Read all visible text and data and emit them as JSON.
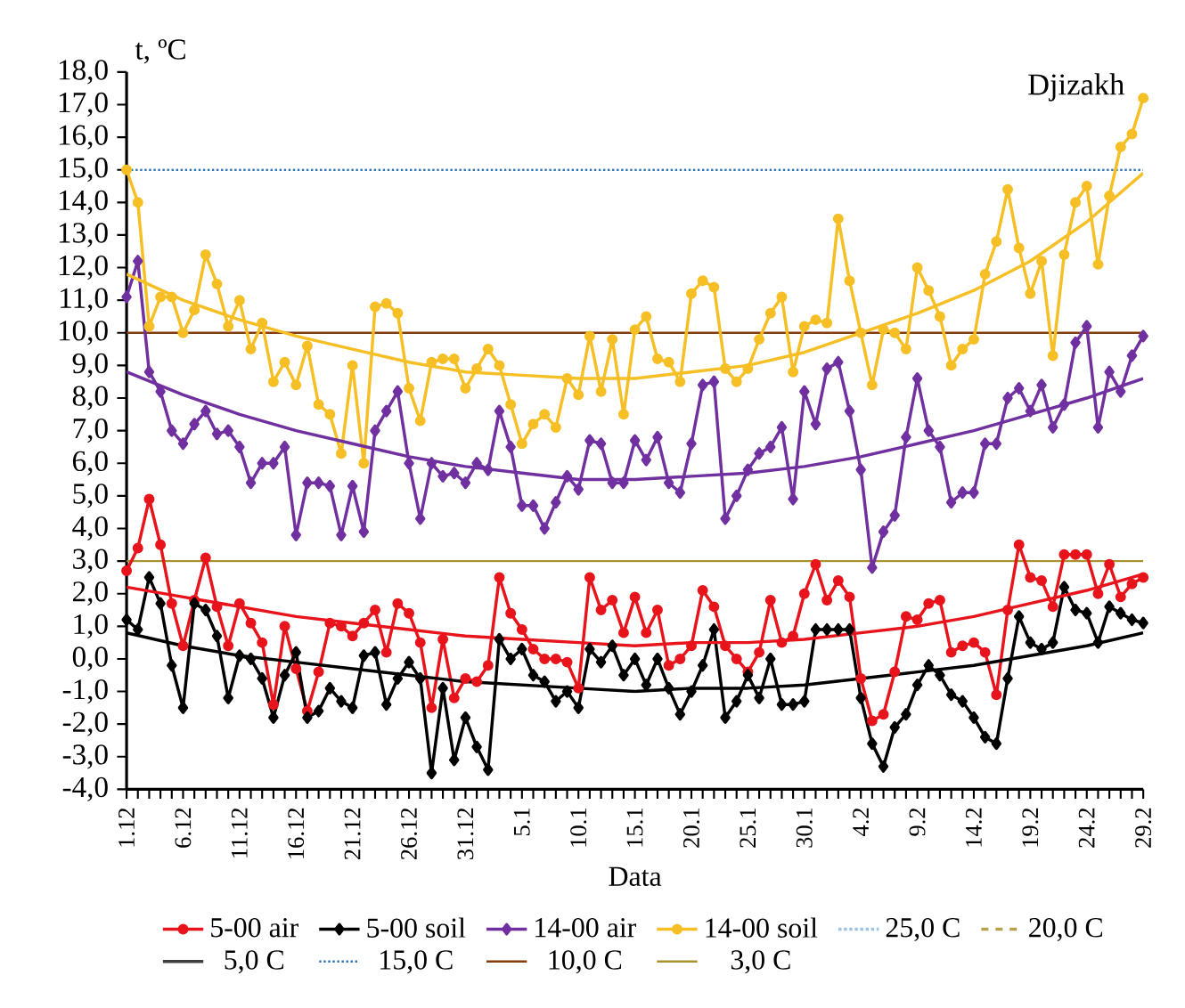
{
  "chart_data": {
    "type": "line",
    "title": "Djizakh",
    "xlabel": "Data",
    "ylabel": "t, ºC",
    "categories": [
      "1.12",
      null,
      null,
      null,
      null,
      "6.12",
      null,
      null,
      null,
      null,
      "11.12",
      null,
      null,
      null,
      null,
      "16.12",
      null,
      null,
      null,
      null,
      "21.12",
      null,
      null,
      null,
      null,
      "26.12",
      null,
      null,
      null,
      null,
      "31.12",
      null,
      null,
      null,
      null,
      "5.1",
      null,
      null,
      null,
      null,
      "10.1",
      null,
      null,
      null,
      null,
      "15.1",
      null,
      null,
      null,
      null,
      "20.1",
      null,
      null,
      null,
      null,
      "25.1",
      null,
      null,
      null,
      null,
      "30.1",
      null,
      null,
      null,
      null,
      "4.2",
      null,
      null,
      null,
      null,
      "9.2",
      null,
      null,
      null,
      null,
      "14.2",
      null,
      null,
      null,
      null,
      "19.2",
      null,
      null,
      null,
      null,
      "24.2",
      null,
      null,
      null,
      null,
      "29.2"
    ],
    "series": [
      {
        "name": "5-00 air",
        "color": "#e8141b",
        "marker": "circle",
        "values": [
          2.7,
          3.4,
          4.9,
          3.5,
          1.7,
          0.4,
          1.8,
          3.1,
          1.6,
          0.4,
          1.7,
          1.1,
          0.5,
          -1.4,
          1.0,
          -0.3,
          -1.6,
          -0.4,
          1.1,
          1.0,
          0.7,
          1.1,
          1.5,
          0.2,
          1.7,
          1.4,
          0.5,
          -1.5,
          0.6,
          -1.2,
          -0.6,
          -0.7,
          -0.2,
          2.5,
          1.4,
          0.9,
          0.3,
          0.0,
          0.0,
          -0.1,
          -0.9,
          2.5,
          1.5,
          1.8,
          0.8,
          1.9,
          0.8,
          1.5,
          -0.2,
          0.0,
          0.4,
          2.1,
          1.6,
          0.4,
          0.0,
          -0.4,
          0.2,
          1.8,
          0.5,
          0.7,
          2.0,
          2.9,
          1.8,
          2.4,
          1.9,
          -0.6,
          -1.9,
          -1.7,
          -0.4,
          1.3,
          1.2,
          1.7,
          1.8,
          0.2,
          0.4,
          0.5,
          0.2,
          -1.1,
          1.5,
          3.5,
          2.5,
          2.4,
          1.6,
          3.2,
          3.2,
          3.2,
          2.0,
          2.9,
          1.9,
          2.3,
          2.5
        ]
      },
      {
        "name": "5-00 soil",
        "color": "#000000",
        "marker": "diamond",
        "values": [
          1.2,
          0.9,
          2.5,
          1.7,
          -0.2,
          -1.5,
          1.7,
          1.5,
          0.7,
          -1.2,
          0.1,
          0.0,
          -0.6,
          -1.8,
          -0.5,
          0.2,
          -1.8,
          -1.6,
          -0.9,
          -1.3,
          -1.5,
          0.1,
          0.2,
          -1.4,
          -0.6,
          -0.1,
          -0.6,
          -3.5,
          -0.9,
          -3.1,
          -1.8,
          -2.7,
          -3.4,
          0.6,
          0.0,
          0.3,
          -0.5,
          -0.7,
          -1.3,
          -1.0,
          -1.5,
          0.3,
          -0.1,
          0.4,
          -0.5,
          0.0,
          -0.8,
          0.0,
          -0.9,
          -1.7,
          -1.0,
          -0.2,
          0.9,
          -1.8,
          -1.3,
          -0.5,
          -1.2,
          0.0,
          -1.4,
          -1.4,
          -1.3,
          0.9,
          0.9,
          0.9,
          0.9,
          -1.2,
          -2.6,
          -3.3,
          -2.1,
          -1.7,
          -0.8,
          -0.2,
          -0.5,
          -1.1,
          -1.3,
          -1.8,
          -2.4,
          -2.6,
          -0.6,
          1.3,
          0.5,
          0.3,
          0.5,
          2.2,
          1.5,
          1.4,
          0.5,
          1.6,
          1.4,
          1.2,
          1.1
        ]
      },
      {
        "name": "14-00 air",
        "color": "#7030a0",
        "marker": "diamond",
        "values": [
          11.1,
          12.2,
          8.8,
          8.2,
          7.0,
          6.6,
          7.2,
          7.6,
          6.9,
          7.0,
          6.5,
          5.4,
          6.0,
          6.0,
          6.5,
          3.8,
          5.4,
          5.4,
          5.3,
          3.8,
          5.3,
          3.9,
          7.0,
          7.6,
          8.2,
          6.0,
          4.3,
          6.0,
          5.6,
          5.7,
          5.4,
          6.0,
          5.8,
          7.6,
          6.5,
          4.7,
          4.7,
          4.0,
          4.8,
          5.6,
          5.2,
          6.7,
          6.6,
          5.4,
          5.4,
          6.7,
          6.1,
          6.8,
          5.4,
          5.1,
          6.6,
          8.4,
          8.5,
          4.3,
          5.0,
          5.8,
          6.3,
          6.5,
          7.1,
          4.9,
          8.2,
          7.2,
          8.9,
          9.1,
          7.6,
          5.8,
          2.8,
          3.9,
          4.4,
          6.8,
          8.6,
          7.0,
          6.5,
          4.8,
          5.1,
          5.1,
          6.6,
          6.6,
          8.0,
          8.3,
          7.6,
          8.4,
          7.1,
          7.8,
          9.7,
          10.2,
          7.1,
          8.8,
          8.2,
          9.3,
          9.9
        ]
      },
      {
        "name": "14-00 soil",
        "color": "#f5bf25",
        "marker": "circle",
        "values": [
          15.0,
          14.0,
          10.2,
          11.1,
          11.1,
          10.0,
          10.7,
          12.4,
          11.5,
          10.2,
          11.0,
          9.5,
          10.3,
          8.5,
          9.1,
          8.4,
          9.6,
          7.8,
          7.5,
          6.3,
          9.0,
          6.0,
          10.8,
          10.9,
          10.6,
          8.3,
          7.3,
          9.1,
          9.2,
          9.2,
          8.3,
          8.9,
          9.5,
          9.0,
          7.8,
          6.6,
          7.2,
          7.5,
          7.1,
          8.6,
          8.1,
          9.9,
          8.2,
          9.8,
          7.5,
          10.1,
          10.5,
          9.2,
          9.1,
          8.5,
          11.2,
          11.6,
          11.4,
          8.9,
          8.5,
          8.9,
          9.8,
          10.6,
          11.1,
          8.8,
          10.2,
          10.4,
          10.3,
          13.5,
          11.6,
          10.0,
          8.4,
          10.1,
          10.0,
          9.5,
          12.0,
          11.3,
          10.5,
          9.0,
          9.5,
          9.8,
          11.8,
          12.8,
          14.4,
          12.6,
          11.2,
          12.2,
          9.3,
          12.4,
          14.0,
          14.5,
          12.1,
          14.2,
          15.7,
          16.1,
          17.2
        ]
      },
      {
        "name": "25,0 C",
        "type": "line",
        "color": "#9dc3e6",
        "marker": "none",
        "line_style": "dotted",
        "values": [
          null,
          null,
          null,
          null,
          null,
          null,
          null,
          null,
          null,
          null,
          null,
          null,
          null,
          null,
          null,
          null,
          null,
          null,
          null,
          null,
          null,
          null,
          null,
          null,
          null,
          null,
          null,
          null,
          null,
          null,
          null,
          null,
          null,
          null,
          null,
          null,
          null,
          null,
          null,
          null,
          null,
          null,
          null,
          null,
          null,
          null,
          null,
          null,
          null,
          null,
          null,
          null,
          null,
          null,
          null,
          null,
          null,
          null,
          null,
          null,
          null,
          null,
          null,
          null,
          null,
          null,
          null,
          null,
          null,
          null,
          null,
          null,
          null,
          null,
          null,
          null,
          null,
          null,
          null,
          null,
          null,
          null,
          null,
          null,
          null,
          null,
          null,
          null,
          null,
          null,
          null
        ]
      },
      {
        "name": "20,0 C",
        "type": "line",
        "color": "#b5a24a",
        "marker": "none",
        "line_style": "dashed",
        "values": [
          null,
          null,
          null,
          null,
          null,
          null,
          null,
          null,
          null,
          null,
          null,
          null,
          null,
          null,
          null,
          null,
          null,
          null,
          null,
          null,
          null,
          null,
          null,
          null,
          null,
          null,
          null,
          null,
          null,
          null,
          null,
          null,
          null,
          null,
          null,
          null,
          null,
          null,
          null,
          null,
          null,
          null,
          null,
          null,
          null,
          null,
          null,
          null,
          null,
          null,
          null,
          null,
          null,
          null,
          null,
          null,
          null,
          null,
          null,
          null,
          null,
          null,
          null,
          null,
          null,
          null,
          null,
          null,
          null,
          null,
          null,
          null,
          null,
          null,
          null,
          null,
          null,
          null,
          null,
          null,
          null,
          null,
          null,
          null,
          null,
          null,
          null,
          null,
          null,
          null,
          null
        ]
      },
      {
        "type": "line",
        "color": "#e8141b",
        "marker": "none",
        "values": [
          2.2,
          null,
          null,
          null,
          null,
          1.9,
          null,
          null,
          null,
          null,
          1.6,
          null,
          null,
          null,
          null,
          1.3,
          null,
          null,
          null,
          null,
          1.1,
          null,
          null,
          null,
          null,
          0.9,
          null,
          null,
          null,
          null,
          0.7,
          null,
          null,
          null,
          null,
          0.6,
          null,
          null,
          null,
          null,
          0.5,
          null,
          null,
          null,
          null,
          0.4,
          null,
          null,
          null,
          null,
          0.5,
          null,
          null,
          null,
          null,
          0.5,
          null,
          null,
          null,
          null,
          0.6,
          null,
          null,
          null,
          null,
          0.8,
          null,
          null,
          null,
          null,
          1.0,
          null,
          null,
          null,
          null,
          1.3,
          null,
          null,
          null,
          null,
          1.7,
          null,
          null,
          null,
          null,
          2.1,
          null,
          null,
          null,
          null,
          2.6
        ]
      },
      {
        "type": "line",
        "color": "#000000",
        "marker": "none",
        "values": [
          0.8,
          null,
          null,
          null,
          null,
          0.4,
          null,
          null,
          null,
          null,
          0.1,
          null,
          null,
          null,
          null,
          -0.1,
          null,
          null,
          null,
          null,
          -0.3,
          null,
          null,
          null,
          null,
          -0.5,
          null,
          null,
          null,
          null,
          -0.7,
          null,
          null,
          null,
          null,
          -0.8,
          null,
          null,
          null,
          null,
          -0.9,
          null,
          null,
          null,
          null,
          -1.0,
          null,
          null,
          null,
          null,
          -0.9,
          null,
          null,
          null,
          null,
          -0.9,
          null,
          null,
          null,
          null,
          -0.8,
          null,
          null,
          null,
          null,
          -0.6,
          null,
          null,
          null,
          null,
          -0.4,
          null,
          null,
          null,
          null,
          -0.2,
          null,
          null,
          null,
          null,
          0.1,
          null,
          null,
          null,
          null,
          0.4,
          null,
          null,
          null,
          null,
          0.8
        ]
      },
      {
        "type": "line",
        "color": "#7030a0",
        "marker": "none",
        "values": [
          8.8,
          null,
          null,
          null,
          null,
          8.1,
          null,
          null,
          null,
          null,
          7.5,
          null,
          null,
          null,
          null,
          7.0,
          null,
          null,
          null,
          null,
          6.6,
          null,
          null,
          null,
          null,
          6.2,
          null,
          null,
          null,
          null,
          5.9,
          null,
          null,
          null,
          null,
          5.7,
          null,
          null,
          null,
          null,
          5.5,
          null,
          null,
          null,
          null,
          5.5,
          null,
          null,
          null,
          null,
          5.6,
          null,
          null,
          null,
          null,
          5.7,
          null,
          null,
          null,
          null,
          5.9,
          null,
          null,
          null,
          null,
          6.2,
          null,
          null,
          null,
          null,
          6.6,
          null,
          null,
          null,
          null,
          7.0,
          null,
          null,
          null,
          null,
          7.5,
          null,
          null,
          null,
          null,
          8.0,
          null,
          null,
          null,
          null,
          8.6
        ]
      },
      {
        "type": "line",
        "color": "#f5bf25",
        "marker": "none",
        "values": [
          11.8,
          null,
          null,
          null,
          null,
          11.0,
          null,
          null,
          null,
          null,
          10.4,
          null,
          null,
          null,
          null,
          9.9,
          null,
          null,
          null,
          null,
          9.5,
          null,
          null,
          null,
          null,
          9.1,
          null,
          null,
          null,
          null,
          8.8,
          null,
          null,
          null,
          null,
          8.7,
          null,
          null,
          null,
          null,
          8.6,
          null,
          null,
          null,
          null,
          8.6,
          null,
          null,
          null,
          null,
          8.8,
          null,
          null,
          null,
          null,
          9.0,
          null,
          null,
          null,
          null,
          9.4,
          null,
          null,
          null,
          null,
          10.0,
          null,
          null,
          null,
          null,
          10.6,
          null,
          null,
          null,
          null,
          11.3,
          null,
          null,
          null,
          null,
          12.2,
          null,
          null,
          null,
          null,
          13.4,
          null,
          null,
          null,
          null,
          14.9
        ]
      },
      {
        "name": "5,0 C",
        "type": "line",
        "color": "#404040",
        "marker": "none",
        "line_style": "solid",
        "values": [
          null,
          null,
          null,
          null,
          null,
          null,
          null,
          null,
          null,
          null,
          null,
          null,
          null,
          null,
          null,
          null,
          null,
          null,
          null,
          null,
          null,
          null,
          null,
          null,
          null,
          null,
          null,
          null,
          null,
          null,
          null,
          null,
          null,
          null,
          null,
          null,
          null,
          null,
          null,
          null,
          null,
          null,
          null,
          null,
          null,
          null,
          null,
          null,
          null,
          null,
          null,
          null,
          null,
          null,
          null,
          null,
          null,
          null,
          null,
          null,
          null,
          null,
          null,
          null,
          null,
          null,
          null,
          null,
          null,
          null,
          null,
          null,
          null,
          null,
          null,
          null,
          null,
          null,
          null,
          null,
          null,
          null,
          null,
          null,
          null,
          null,
          null,
          null,
          null,
          null,
          null
        ]
      }
    ],
    "ref_lines": [
      {
        "axis": "y",
        "value": 15,
        "label": "15,0 C",
        "color": "#2e75b6",
        "line_style": "dotted"
      },
      {
        "axis": "y",
        "value": 10,
        "label": "10,0 C",
        "color": "#843c0c",
        "line_style": "solid"
      },
      {
        "axis": "y",
        "value": 3,
        "label": "3,0 C",
        "color": "#a8922e",
        "line_style": "solid"
      }
    ],
    "ylim": [
      -4,
      18
    ],
    "yticks": [
      {
        "value": -4,
        "label": "-4,0"
      },
      {
        "value": -3,
        "label": "-3,0"
      },
      {
        "value": -2,
        "label": "-2,0"
      },
      {
        "value": -1,
        "label": "-1,0"
      },
      {
        "value": 0,
        "label": "0,0"
      },
      {
        "value": 1,
        "label": "1,0"
      },
      {
        "value": 2,
        "label": "2,0"
      },
      {
        "value": 3,
        "label": "3,0"
      },
      {
        "value": 4,
        "label": "4,0"
      },
      {
        "value": 5,
        "label": "5,0"
      },
      {
        "value": 6,
        "label": "6,0"
      },
      {
        "value": 7,
        "label": "7,0"
      },
      {
        "value": 8,
        "label": "8,0"
      },
      {
        "value": 9,
        "label": "9,0"
      },
      {
        "value": 10,
        "label": "10,0"
      },
      {
        "value": 11,
        "label": "11,0"
      },
      {
        "value": 12,
        "label": "12,0"
      },
      {
        "value": 13,
        "label": "13,0"
      },
      {
        "value": 14,
        "label": "14,0"
      },
      {
        "value": 15,
        "label": "15,0"
      },
      {
        "value": 16,
        "label": "16,0"
      },
      {
        "value": 17,
        "label": "17,0"
      },
      {
        "value": 18,
        "label": "18,0"
      }
    ],
    "legend": "bottom",
    "grid": false,
    "line_style": "solid"
  }
}
